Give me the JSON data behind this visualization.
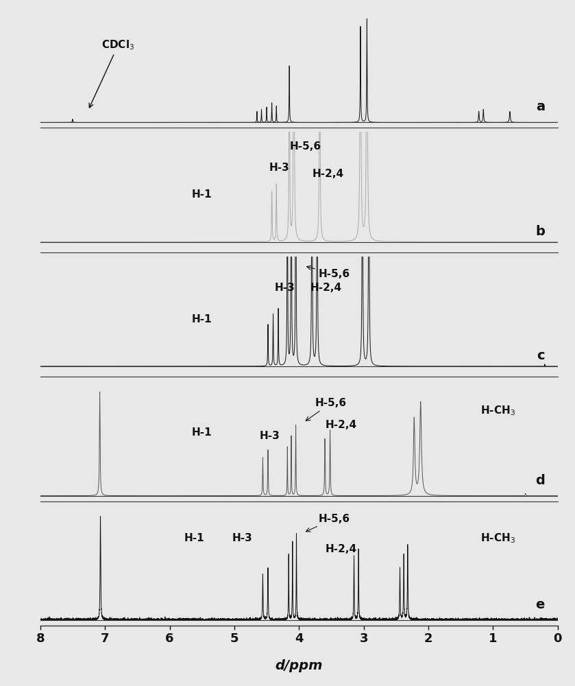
{
  "panels": [
    "a",
    "b",
    "c",
    "d",
    "e"
  ],
  "xmin": 0,
  "xmax": 8,
  "xlabel": "d/ppm",
  "bg_color": "#e8e8e8",
  "line_color_a": "#111111",
  "line_color_b": "#aaaaaa",
  "line_color_c": "#111111",
  "line_color_d": "#555555",
  "line_color_e": "#111111",
  "border_color": "#333333",
  "tick_color": "#111111"
}
